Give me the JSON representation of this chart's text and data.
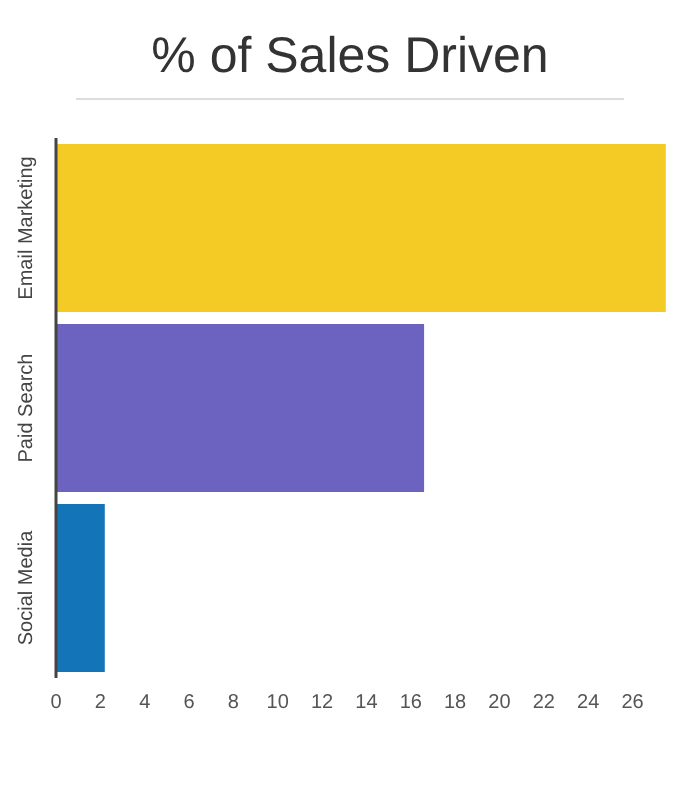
{
  "chart_data": {
    "type": "bar",
    "orientation": "horizontal",
    "title": "% of Sales Driven",
    "categories": [
      "Email Marketing",
      "Paid Search",
      "Social Media"
    ],
    "values": [
      27.5,
      16.6,
      2.2
    ],
    "colors": [
      "#f4ca24",
      "#6c63c0",
      "#1474b8"
    ],
    "xlim": [
      0,
      27.6
    ],
    "xticks": [
      0,
      2,
      4,
      6,
      8,
      10,
      12,
      14,
      16,
      18,
      20,
      22,
      24,
      26
    ],
    "grid": false
  }
}
